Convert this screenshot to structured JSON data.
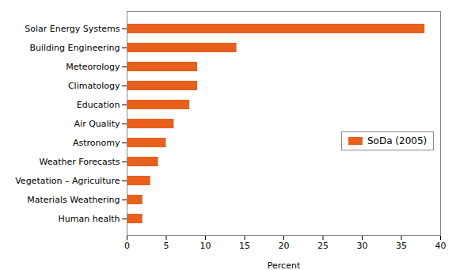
{
  "chart_data": {
    "type": "bar",
    "orientation": "horizontal",
    "categories": [
      "Human health",
      "Materials Weathering",
      "Vegetation – Agriculture",
      "Weather Forecasts",
      "Astronomy",
      "Air Quality",
      "Education",
      "Climatology",
      "Meteorology",
      "Building Engineering",
      "Solar Energy Systems"
    ],
    "series": [
      {
        "name": "SoDa (2005)",
        "color": "#E8601C",
        "values": [
          2,
          2,
          3,
          4,
          5,
          6,
          8,
          9,
          9,
          14,
          38
        ]
      }
    ],
    "xlabel": "Percent",
    "xlim": [
      0,
      40
    ],
    "xticks": [
      0,
      5,
      10,
      15,
      20,
      25,
      30,
      35,
      40
    ],
    "grid": false,
    "legend": "right"
  }
}
